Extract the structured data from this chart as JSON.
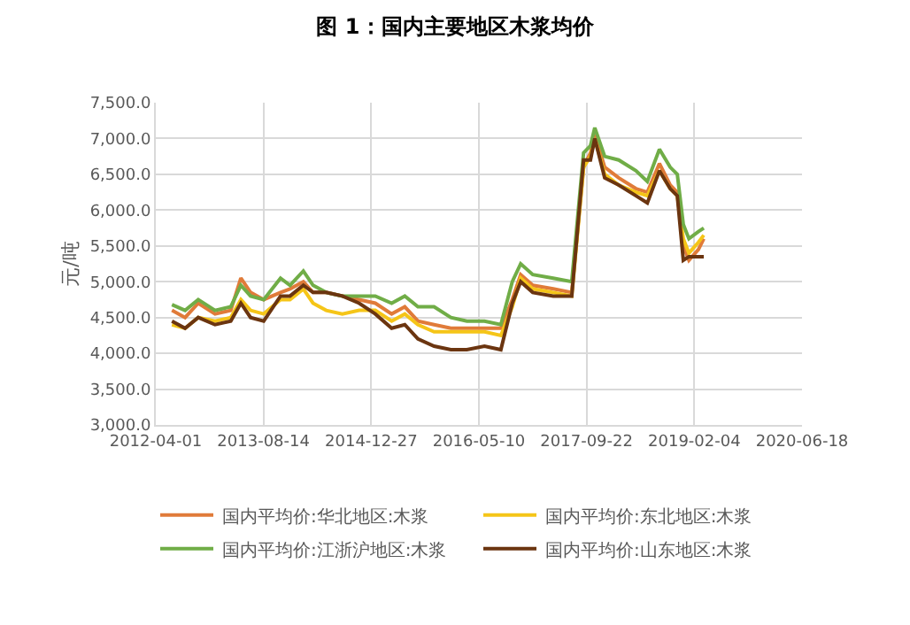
{
  "chart_data": {
    "type": "line",
    "title": "图 1：国内主要地区木浆均价",
    "ylabel": "元/吨",
    "x": [
      "2012-06-15",
      "2012-08-15",
      "2012-10-15",
      "2013-01-01",
      "2013-03-15",
      "2013-05-01",
      "2013-06-15",
      "2013-08-15",
      "2013-11-01",
      "2013-12-15",
      "2014-02-15",
      "2014-04-01",
      "2014-06-01",
      "2014-08-15",
      "2014-11-01",
      "2015-01-15",
      "2015-04-01",
      "2015-06-01",
      "2015-08-01",
      "2015-10-15",
      "2016-01-01",
      "2016-03-15",
      "2016-06-05",
      "2016-08-20",
      "2016-10-12",
      "2016-11-20",
      "2017-01-15",
      "2017-04-20",
      "2017-07-15",
      "2017-09-08",
      "2017-10-10",
      "2017-10-30",
      "2017-12-15",
      "2018-02-18",
      "2018-05-09",
      "2018-07-01",
      "2018-08-26",
      "2018-10-15",
      "2018-11-17",
      "2018-12-15",
      "2019-01-10",
      "2019-02-23",
      "2019-03-20"
    ],
    "series": [
      {
        "name": "国内平均价:华北地区:木浆",
        "color": "#e07b39",
        "values": [
          4600,
          4500,
          4700,
          4550,
          4600,
          5050,
          4850,
          4750,
          4850,
          4900,
          5000,
          4850,
          4850,
          4800,
          4750,
          4700,
          4550,
          4650,
          4450,
          4400,
          4350,
          4350,
          4350,
          4350,
          4750,
          5100,
          4950,
          4900,
          4850,
          6600,
          6800,
          7050,
          6600,
          6450,
          6300,
          6250,
          6650,
          6350,
          6250,
          5500,
          5300,
          5450,
          5600
        ]
      },
      {
        "name": "国内平均价:东北地区:木浆",
        "color": "#f5c518",
        "values": [
          4400,
          4350,
          4500,
          4450,
          4500,
          4750,
          4600,
          4550,
          4750,
          4750,
          4900,
          4700,
          4600,
          4550,
          4600,
          4600,
          4450,
          4550,
          4400,
          4300,
          4300,
          4300,
          4300,
          4250,
          4650,
          5050,
          4900,
          4850,
          4800,
          6600,
          6750,
          7000,
          6500,
          6350,
          6250,
          6200,
          6550,
          6300,
          6200,
          5600,
          5400,
          5550,
          5650
        ]
      },
      {
        "name": "国内平均价:江浙沪地区:木浆",
        "color": "#70ad47",
        "values": [
          4680,
          4600,
          4750,
          4600,
          4650,
          4950,
          4800,
          4750,
          5050,
          4950,
          5150,
          4950,
          4850,
          4800,
          4800,
          4800,
          4700,
          4800,
          4650,
          4650,
          4500,
          4450,
          4450,
          4400,
          5000,
          5250,
          5100,
          5050,
          5000,
          6800,
          6900,
          7150,
          6750,
          6700,
          6550,
          6400,
          6850,
          6600,
          6500,
          5800,
          5600,
          5700,
          5750
        ]
      },
      {
        "name": "国内平均价:山东地区:木浆",
        "color": "#6b3510",
        "values": [
          4450,
          4350,
          4500,
          4400,
          4450,
          4700,
          4500,
          4450,
          4800,
          4800,
          4950,
          4850,
          4850,
          4800,
          4700,
          4550,
          4350,
          4400,
          4200,
          4100,
          4050,
          4050,
          4100,
          4050,
          4700,
          5000,
          4850,
          4800,
          4800,
          6700,
          6700,
          7000,
          6450,
          6350,
          6200,
          6100,
          6550,
          6300,
          6200,
          5300,
          5350,
          5350,
          5350
        ]
      }
    ],
    "xlim": [
      "2012-04-01",
      "2020-06-18"
    ],
    "xticks": [
      "2012-04-01",
      "2013-08-14",
      "2014-12-27",
      "2016-05-10",
      "2017-09-22",
      "2019-02-04",
      "2020-06-18"
    ],
    "ylim": [
      3000,
      7500
    ],
    "yticks": [
      {
        "value": 3000,
        "label": "3,000.0"
      },
      {
        "value": 3500,
        "label": "3,500.0"
      },
      {
        "value": 4000,
        "label": "4,000.0"
      },
      {
        "value": 4500,
        "label": "4,500.0"
      },
      {
        "value": 5000,
        "label": "5,000.0"
      },
      {
        "value": 5500,
        "label": "5,500.0"
      },
      {
        "value": 6000,
        "label": "6,000.0"
      },
      {
        "value": 6500,
        "label": "6,500.0"
      },
      {
        "value": 7000,
        "label": "7,000.0"
      },
      {
        "value": 7500,
        "label": "7,500.0"
      }
    ],
    "grid": true,
    "legend": "bottom",
    "marker": "none",
    "line_style": "solid"
  }
}
